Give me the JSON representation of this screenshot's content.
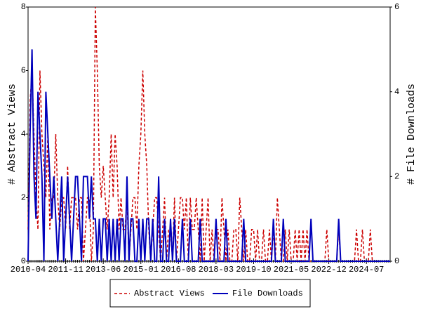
{
  "chart_data": {
    "type": "line",
    "x": [
      "2010-04",
      "2010-05",
      "2010-06",
      "2010-07",
      "2010-08",
      "2010-09",
      "2010-10",
      "2010-11",
      "2010-12",
      "2011-01",
      "2011-02",
      "2011-03",
      "2011-04",
      "2011-05",
      "2011-06",
      "2011-07",
      "2011-08",
      "2011-09",
      "2011-10",
      "2011-11",
      "2011-12",
      "2012-01",
      "2012-02",
      "2012-03",
      "2012-04",
      "2012-05",
      "2012-06",
      "2012-07",
      "2012-08",
      "2012-09",
      "2012-10",
      "2012-11",
      "2012-12",
      "2013-01",
      "2013-02",
      "2013-03",
      "2013-04",
      "2013-05",
      "2013-06",
      "2013-07",
      "2013-08",
      "2013-09",
      "2013-10",
      "2013-11",
      "2013-12",
      "2014-01",
      "2014-02",
      "2014-03",
      "2014-04",
      "2014-05",
      "2014-06",
      "2014-07",
      "2014-08",
      "2014-09",
      "2014-10",
      "2014-11",
      "2014-12",
      "2015-01",
      "2015-02",
      "2015-03",
      "2015-04",
      "2015-05",
      "2015-06",
      "2015-07",
      "2015-08",
      "2015-09",
      "2015-10",
      "2015-11",
      "2015-12",
      "2016-01",
      "2016-02",
      "2016-03",
      "2016-04",
      "2016-05",
      "2016-06",
      "2016-07",
      "2016-08",
      "2016-09",
      "2016-10",
      "2016-11",
      "2016-12",
      "2017-01",
      "2017-02",
      "2017-03",
      "2017-04",
      "2017-05",
      "2017-06",
      "2017-07",
      "2017-08",
      "2017-09",
      "2017-10",
      "2017-11",
      "2017-12",
      "2018-01",
      "2018-02",
      "2018-03",
      "2018-04",
      "2018-05",
      "2018-06",
      "2018-07",
      "2018-08",
      "2018-09",
      "2018-10",
      "2018-11",
      "2018-12",
      "2019-01",
      "2019-02",
      "2019-03",
      "2019-04",
      "2019-05",
      "2019-06",
      "2019-07",
      "2019-08",
      "2019-09",
      "2019-10",
      "2019-11",
      "2019-12",
      "2020-01",
      "2020-02",
      "2020-03",
      "2020-04",
      "2020-05",
      "2020-06",
      "2020-07",
      "2020-08",
      "2020-09",
      "2020-10",
      "2020-11",
      "2020-12",
      "2021-01",
      "2021-02",
      "2021-03",
      "2021-04",
      "2021-05",
      "2021-06",
      "2021-07",
      "2021-08",
      "2021-09",
      "2021-10",
      "2021-11",
      "2021-12",
      "2022-01",
      "2022-02",
      "2022-03",
      "2022-04",
      "2022-05",
      "2022-06",
      "2022-07",
      "2022-08",
      "2022-09",
      "2022-10",
      "2022-11",
      "2022-12",
      "2023-01",
      "2023-02",
      "2023-03",
      "2023-04",
      "2023-05",
      "2023-06",
      "2023-07",
      "2023-08",
      "2023-09",
      "2023-10",
      "2023-11",
      "2023-12",
      "2024-01",
      "2024-02",
      "2024-03",
      "2024-04",
      "2024-05",
      "2024-06",
      "2024-07",
      "2024-08",
      "2024-09",
      "2024-10",
      "2024-11",
      "2024-12",
      "2025-01",
      "2025-02",
      "2025-03",
      "2025-04",
      "2025-05",
      "2025-06",
      "2025-07"
    ],
    "xticks": [
      "2010-04",
      "2011-11",
      "2013-06",
      "2015-01",
      "2016-08",
      "2018-03",
      "2019-10",
      "2021-05",
      "2022-12",
      "2024-07"
    ],
    "ylabel": "# Abstract Views",
    "y2label": "# File Downloads",
    "ylim": [
      0,
      8
    ],
    "yticks": [
      0,
      2,
      4,
      6,
      8
    ],
    "y2lim": [
      0,
      6
    ],
    "y2ticks": [
      0,
      2,
      4,
      6
    ],
    "legend": "bottom",
    "series": [
      {
        "name": "Abstract Views",
        "color": "#cc0000",
        "dashed": true,
        "values": [
          1,
          5,
          6,
          4,
          2,
          1,
          6,
          4,
          3,
          2,
          4,
          1,
          2,
          2,
          4,
          2,
          1,
          2,
          2,
          1,
          3,
          1,
          2,
          2,
          2,
          1,
          2,
          2,
          0,
          1,
          2,
          2,
          0,
          1,
          8,
          6,
          3,
          2,
          3,
          2,
          1,
          2,
          4,
          2,
          4,
          3,
          1,
          2,
          1,
          1,
          2,
          0,
          1,
          2,
          2,
          1,
          3,
          4,
          6,
          4,
          3,
          1,
          0,
          1,
          2,
          2,
          1,
          0,
          1,
          2,
          0,
          1,
          1,
          0,
          2,
          0,
          1,
          2,
          2,
          1,
          2,
          0,
          2,
          1,
          1,
          2,
          1,
          0,
          2,
          0,
          1,
          2,
          0,
          1,
          0,
          1,
          1,
          0,
          2,
          1,
          0,
          1,
          0,
          0,
          1,
          1,
          0,
          2,
          1,
          0,
          1,
          0,
          0,
          1,
          1,
          0,
          1,
          0,
          0,
          1,
          0,
          0,
          1,
          0,
          1,
          0,
          2,
          1,
          0,
          0,
          1,
          0,
          1,
          0,
          0,
          1,
          0,
          1,
          0,
          1,
          0,
          1,
          0,
          0,
          0,
          0,
          0,
          0,
          0,
          0,
          0,
          1,
          0,
          0,
          0,
          0,
          0,
          1,
          0,
          0,
          0,
          0,
          0,
          0,
          0,
          0,
          1,
          0,
          0,
          1,
          0,
          0,
          0,
          1,
          0,
          0,
          0,
          0,
          0,
          0,
          0,
          0,
          0,
          0
        ]
      },
      {
        "name": "File Downloads",
        "color": "#0000bb",
        "axis": "y2",
        "values": [
          0,
          3,
          5,
          2,
          1,
          4,
          3,
          2,
          0,
          4,
          3,
          2,
          1,
          2,
          1,
          0,
          1,
          2,
          0,
          1,
          2,
          1,
          0,
          1,
          2,
          2,
          1,
          0,
          2,
          2,
          2,
          1,
          2,
          1,
          1,
          0,
          1,
          0,
          1,
          1,
          0,
          1,
          0,
          1,
          0,
          1,
          0,
          1,
          1,
          0,
          2,
          0,
          1,
          1,
          0,
          0,
          1,
          0,
          1,
          0,
          1,
          1,
          0,
          1,
          0,
          0,
          2,
          0,
          0,
          1,
          0,
          0,
          1,
          0,
          1,
          0,
          0,
          0,
          1,
          0,
          0,
          0,
          1,
          0,
          0,
          0,
          0,
          1,
          0,
          0,
          0,
          0,
          0,
          0,
          0,
          1,
          0,
          0,
          0,
          0,
          1,
          0,
          0,
          0,
          0,
          0,
          0,
          0,
          0,
          1,
          0,
          0,
          0,
          0,
          0,
          0,
          0,
          0,
          0,
          0,
          0,
          0,
          0,
          0,
          1,
          0,
          0,
          0,
          0,
          1,
          0,
          0,
          0,
          0,
          0,
          0,
          0,
          0,
          0,
          0,
          0,
          0,
          0,
          1,
          0,
          0,
          0,
          0,
          0,
          0,
          0,
          0,
          0,
          0,
          0,
          0,
          0,
          1,
          0,
          0,
          0,
          0,
          0,
          0,
          0,
          0,
          0,
          0,
          0,
          0,
          0,
          0,
          0,
          0,
          0,
          0,
          0,
          0,
          0,
          0,
          0,
          0,
          0,
          0
        ]
      }
    ]
  }
}
